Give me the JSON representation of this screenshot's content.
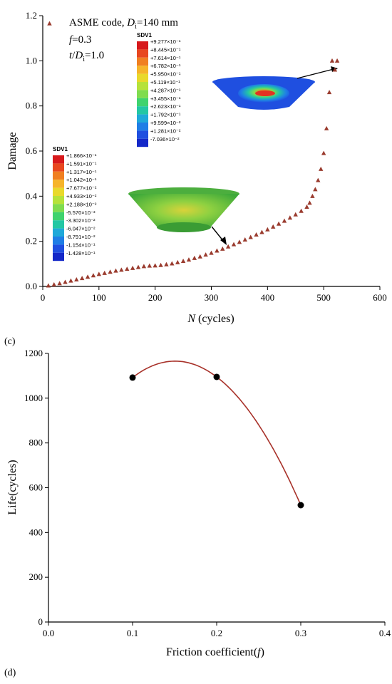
{
  "chart_data": [
    {
      "type": "scatter",
      "panel_label": "(c)",
      "annotation": {
        "line1_prefix": "ASME code, ",
        "line1_var": "D",
        "line1_sub": "i",
        "line1_suffix": "=140 mm",
        "line2_var": "f",
        "line2_suffix": "=0.3",
        "line3_var_t": "t",
        "line3_slash": "/",
        "line3_var_d": "D",
        "line3_sub": "i",
        "line3_suffix": "=1.0"
      },
      "xlabel_var": "N",
      "xlabel_unit": " (cycles)",
      "ylabel": "Damage",
      "xlim": [
        0,
        600
      ],
      "ylim": [
        0,
        1.2
      ],
      "xticks": [
        "0",
        "100",
        "200",
        "300",
        "400",
        "500",
        "600"
      ],
      "yticks": [
        "0.0",
        "0.2",
        "0.4",
        "0.6",
        "0.8",
        "1.0",
        "1.2"
      ],
      "grid": false,
      "marker_color": "#9a3b2e",
      "series": [
        {
          "x": [
            10,
            20,
            30,
            40,
            50,
            60,
            70,
            80,
            90,
            100,
            110,
            120,
            130,
            140,
            150,
            160,
            170,
            180,
            190,
            200,
            210,
            220,
            230,
            240,
            250,
            260,
            270,
            280,
            290,
            300,
            310,
            320,
            330,
            340,
            350,
            360,
            370,
            380,
            390,
            400,
            410,
            420,
            430,
            440,
            450,
            460,
            470,
            475,
            480,
            485,
            490,
            495,
            500,
            505,
            510,
            515,
            520,
            524
          ],
          "y": [
            0.003,
            0.008,
            0.013,
            0.019,
            0.025,
            0.03,
            0.036,
            0.042,
            0.048,
            0.054,
            0.059,
            0.064,
            0.069,
            0.073,
            0.077,
            0.081,
            0.085,
            0.089,
            0.091,
            0.092,
            0.094,
            0.097,
            0.101,
            0.106,
            0.112,
            0.118,
            0.125,
            0.132,
            0.14,
            0.148,
            0.158,
            0.166,
            0.176,
            0.186,
            0.196,
            0.207,
            0.218,
            0.229,
            0.24,
            0.252,
            0.264,
            0.277,
            0.29,
            0.304,
            0.318,
            0.334,
            0.352,
            0.37,
            0.4,
            0.43,
            0.47,
            0.52,
            0.59,
            0.7,
            0.86,
            1.0,
            0.96,
            1.0
          ]
        }
      ],
      "insets": [
        {
          "legend_title": "SDV1",
          "labels": [
            "+9.277×10⁻¹",
            "+8.445×10⁻¹",
            "+7.614×10⁻¹",
            "+6.782×10⁻¹",
            "+5.950×10⁻¹",
            "+5.119×10⁻¹",
            "+4.287×10⁻¹",
            "+3.455×10⁻¹",
            "+2.623×10⁻¹",
            "+1.792×10⁻¹",
            "+9.599×10⁻²",
            "+1.281×10⁻²",
            "-7.036×10⁻²"
          ]
        },
        {
          "legend_title": "SDV1",
          "labels": [
            "+1.866×10⁻¹",
            "+1.591×10⁻¹",
            "+1.317×10⁻¹",
            "+1.042×10⁻¹",
            "+7.677×10⁻²",
            "+4.933×10⁻²",
            "+2.188×10⁻²",
            "-5.570×10⁻³",
            "-3.302×10⁻²",
            "-6.047×10⁻²",
            "-8.791×10⁻²",
            "-1.154×10⁻¹",
            "-1.428×10⁻¹"
          ]
        }
      ],
      "legend_colors": [
        "#d7191c",
        "#e8471f",
        "#f07f21",
        "#f6b42a",
        "#e9d92b",
        "#b6e23a",
        "#7fdc4f",
        "#3fd36e",
        "#23c7a4",
        "#1fa9d9",
        "#1f7ee6",
        "#1f4fe0",
        "#1428c8"
      ]
    },
    {
      "type": "line",
      "panel_label": "(d)",
      "xlabel": "Friction coefficient(",
      "xlabel_var": "f",
      "xlabel_close": ")",
      "ylabel": "Life(cycles)",
      "xlim": [
        0,
        0.4
      ],
      "ylim": [
        0,
        1200
      ],
      "xticks": [
        "0.0",
        "0.1",
        "0.2",
        "0.3",
        "0.4"
      ],
      "yticks": [
        "0",
        "200",
        "400",
        "600",
        "800",
        "1000",
        "1200"
      ],
      "grid": false,
      "line_color": "#a8322a",
      "marker_color": "#000000",
      "x": [
        0.1,
        0.2,
        0.3
      ],
      "y": [
        1092,
        1095,
        522
      ]
    }
  ]
}
